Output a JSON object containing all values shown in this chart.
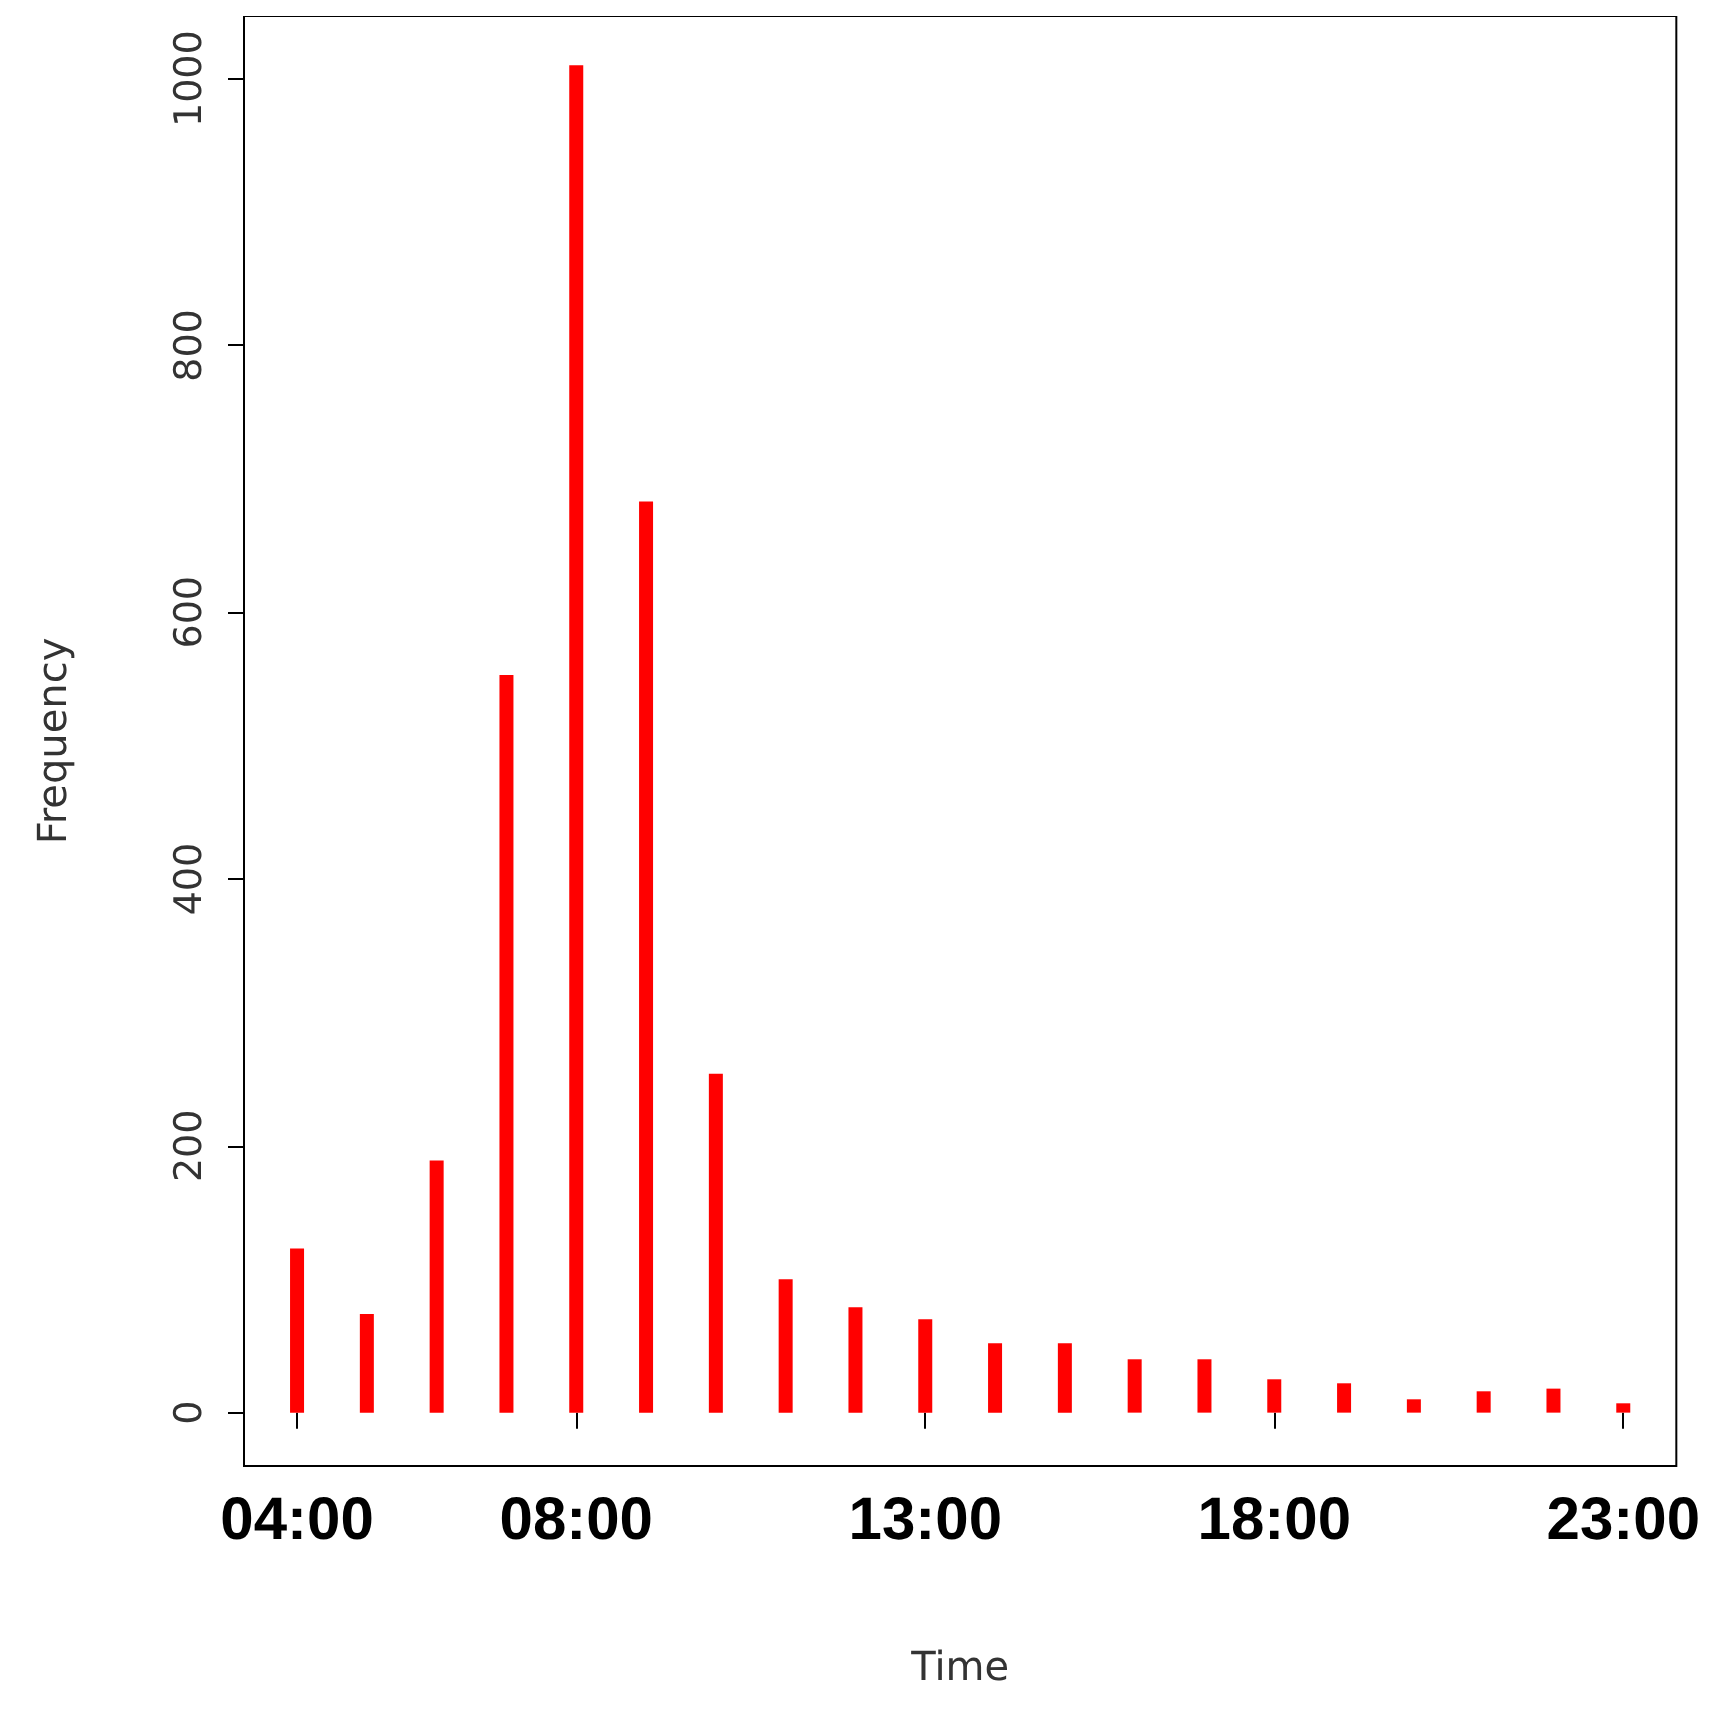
{
  "chart_data": {
    "type": "bar",
    "xlabel": "Time",
    "ylabel": "Frequency",
    "x": [
      4,
      5,
      6,
      7,
      8,
      9,
      10,
      11,
      12,
      13,
      14,
      15,
      16,
      17,
      18,
      19,
      20,
      21,
      22,
      23
    ],
    "values": [
      123,
      74,
      189,
      553,
      1010,
      683,
      254,
      100,
      79,
      70,
      52,
      52,
      40,
      40,
      25,
      22,
      10,
      16,
      18,
      7
    ],
    "color": "#ff0000",
    "xlim": [
      3.24,
      23.76
    ],
    "xticks": [
      {
        "value": 4,
        "label": "04:00"
      },
      {
        "value": 8,
        "label": "08:00"
      },
      {
        "value": 13,
        "label": "13:00"
      },
      {
        "value": 18,
        "label": "18:00"
      },
      {
        "value": 23,
        "label": "23:00"
      }
    ],
    "ylim": [
      -40,
      1047
    ],
    "yticks": [
      0,
      200,
      400,
      600,
      800,
      1000
    ],
    "grid": false
  }
}
